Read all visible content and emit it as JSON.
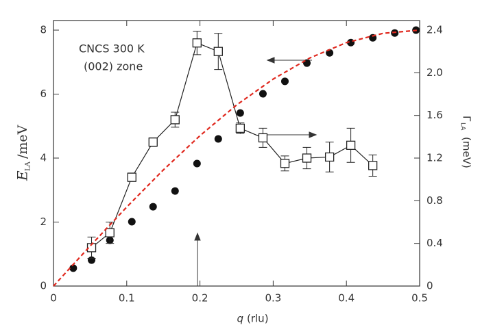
{
  "chart_data": {
    "type": "scatter",
    "annotations": [
      "CNCS 300 K",
      "(002) zone"
    ],
    "xlabel": {
      "symbol": "q",
      "unit": "(rlu)"
    },
    "ylabel": {
      "symbol": "E",
      "subscript": "LA",
      "unit": "/meV"
    },
    "y2label": {
      "symbol": "Γ",
      "subscript": "LA",
      "unit": "(meV)"
    },
    "xlim": [
      0,
      0.5
    ],
    "xticks": [
      0,
      0.1,
      0.2,
      0.3,
      0.4,
      0.5
    ],
    "ylim": [
      0,
      8.3
    ],
    "yticks": [
      0,
      2,
      4,
      6,
      8
    ],
    "y2lim": [
      0,
      2.49
    ],
    "y2ticks": [
      0,
      0.4,
      0.8,
      1.2,
      1.6,
      {
        "value": 2,
        "label": "2.0"
      },
      2.4
    ],
    "series": [
      {
        "kind": "dots",
        "color": "#111111",
        "x": [
          0.027,
          0.052,
          0.077,
          0.107,
          0.136,
          0.166,
          0.196,
          0.225,
          0.255,
          0.286,
          0.316,
          0.346,
          0.377,
          0.406,
          0.436,
          0.466,
          0.495
        ],
        "values": [
          0.56,
          0.81,
          1.43,
          2.01,
          2.48,
          2.97,
          3.83,
          4.6,
          5.41,
          6.01,
          6.4,
          6.97,
          7.29,
          7.61,
          7.76,
          7.91,
          8.0
        ]
      },
      {
        "kind": "squares",
        "color": "#222222",
        "axis": "y2",
        "x": [
          0.052,
          0.077,
          0.107,
          0.136,
          0.166,
          0.196,
          0.225,
          0.255,
          0.286,
          0.316,
          0.346,
          0.377,
          0.406,
          0.436
        ],
        "values": [
          0.36,
          0.5,
          1.02,
          1.35,
          1.56,
          2.28,
          2.2,
          1.48,
          1.39,
          1.15,
          1.2,
          1.21,
          1.32,
          1.13
        ],
        "errors": [
          0.1,
          0.1,
          0.04,
          0.04,
          0.07,
          0.11,
          0.17,
          0.05,
          0.09,
          0.07,
          0.1,
          0.14,
          0.16,
          0.1
        ]
      },
      {
        "kind": "dashed-line",
        "color": "#e0281e",
        "x": [
          0,
          0.05,
          0.1,
          0.15,
          0.2,
          0.25,
          0.3,
          0.35,
          0.4,
          0.45,
          0.5
        ],
        "values": [
          0,
          1.25,
          2.47,
          3.63,
          4.7,
          5.66,
          6.47,
          7.13,
          7.61,
          7.9,
          8.0
        ]
      }
    ]
  }
}
